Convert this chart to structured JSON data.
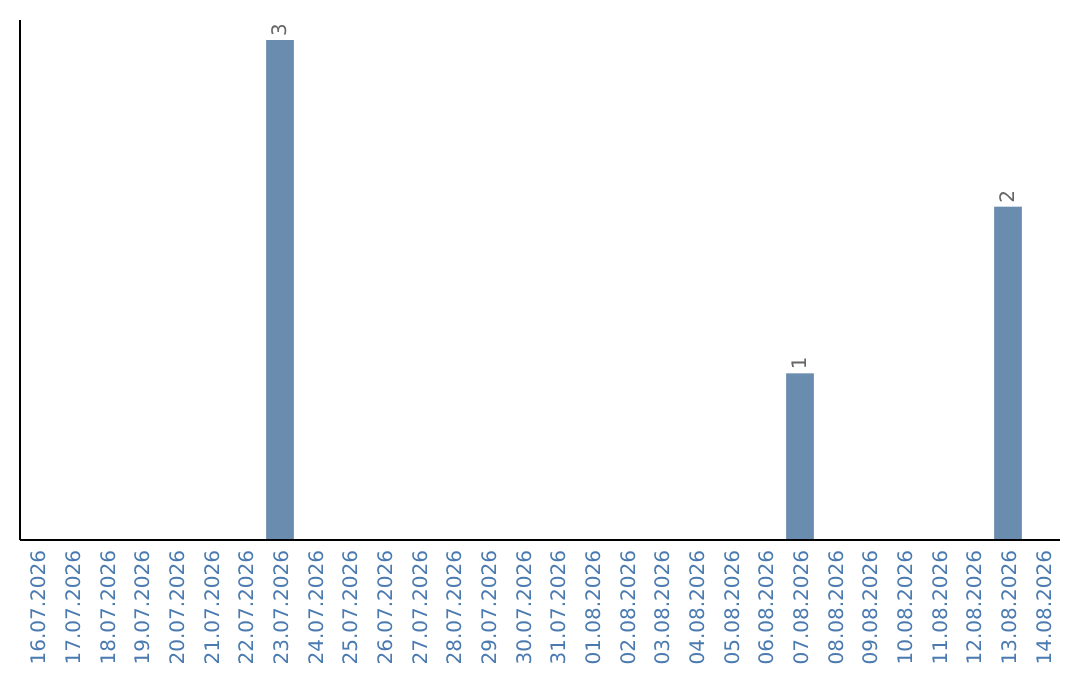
{
  "chart_data": {
    "type": "bar",
    "categories": [
      "16.07.2026",
      "17.07.2026",
      "18.07.2026",
      "19.07.2026",
      "20.07.2026",
      "21.07.2026",
      "22.07.2026",
      "23.07.2026",
      "24.07.2026",
      "25.07.2026",
      "26.07.2026",
      "27.07.2026",
      "28.07.2026",
      "29.07.2026",
      "30.07.2026",
      "31.07.2026",
      "01.08.2026",
      "02.08.2026",
      "03.08.2026",
      "04.08.2026",
      "05.08.2026",
      "06.08.2026",
      "07.08.2026",
      "08.08.2026",
      "09.08.2026",
      "10.08.2026",
      "11.08.2026",
      "12.08.2026",
      "13.08.2026",
      "14.08.2026"
    ],
    "values": [
      0,
      0,
      0,
      0,
      0,
      0,
      0,
      3,
      0,
      0,
      0,
      0,
      0,
      0,
      0,
      0,
      0,
      0,
      0,
      0,
      0,
      0,
      1,
      0,
      0,
      0,
      0,
      0,
      2,
      0
    ],
    "value_labels": [
      null,
      null,
      null,
      null,
      null,
      null,
      null,
      "3",
      null,
      null,
      null,
      null,
      null,
      null,
      null,
      null,
      null,
      null,
      null,
      null,
      null,
      null,
      "1",
      null,
      null,
      null,
      null,
      null,
      "2",
      null
    ],
    "color": "#6a8caf",
    "ylim": [
      0,
      3
    ],
    "tick_labels": "x"
  }
}
